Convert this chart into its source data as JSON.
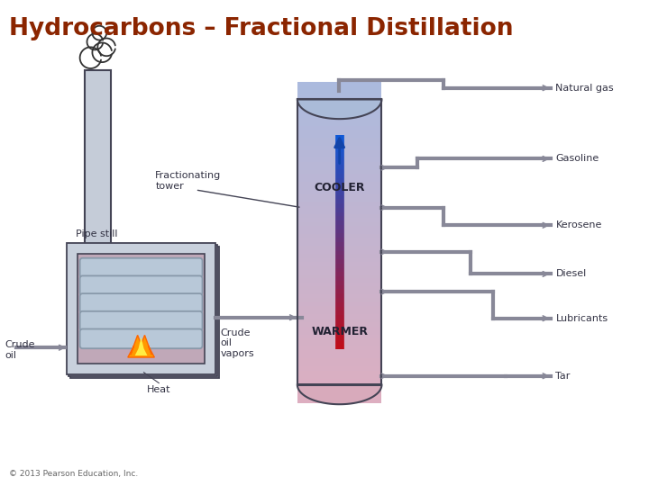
{
  "title": "Hydrocarbons – Fractional Distillation",
  "title_color": "#8B2500",
  "title_fontsize": 19,
  "copyright": "© 2013 Pearson Education, Inc.",
  "bg_color": "#ffffff",
  "labels": {
    "natural_gas": "Natural gas",
    "gasoline": "Gasoline",
    "kerosene": "Kerosene",
    "diesel": "Diesel",
    "lubricants": "Lubricants",
    "tar": "Tar",
    "cooler": "COOLER",
    "warmer": "WARMER",
    "fractionating_tower": "Fractionating\ntower",
    "pipe_still": "Pipe still",
    "crude_oil": "Crude\noil",
    "crude_oil_vapors": "Crude\noil\nvapors",
    "heat": "Heat"
  },
  "tower_color": "#c5ccd8",
  "pipe_still_fill": "#c8d0dc",
  "pipe_still_inner": "#c0a8b8",
  "col_color_top": "#aabbd8",
  "col_color_bot": "#d8aabb",
  "pipe_color": "#888898",
  "pipe_lw": 3.0,
  "label_fontsize": 8,
  "small_fontsize": 7
}
